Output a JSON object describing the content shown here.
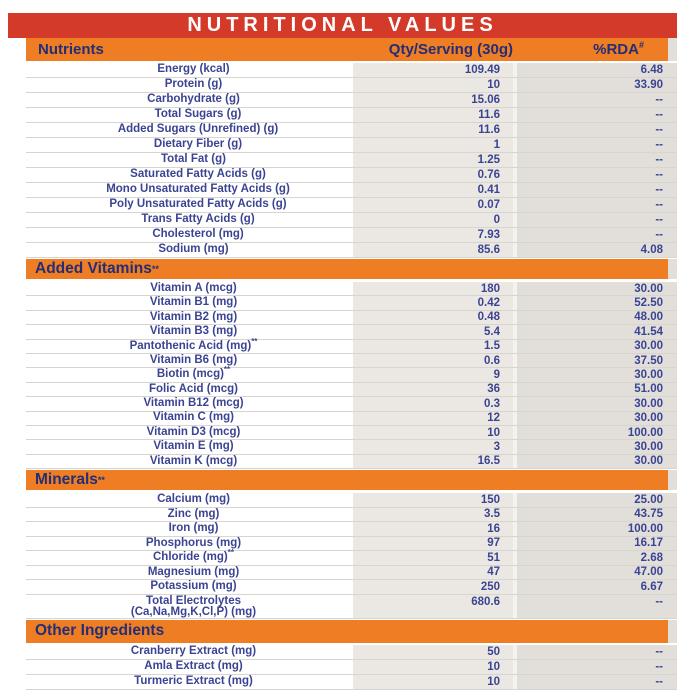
{
  "title": "NUTRITIONAL VALUES",
  "header": {
    "nutrient": "Nutrients",
    "qty": "Qty/Serving (30g)",
    "rda": "%RDA",
    "rda_sup": "#"
  },
  "colors": {
    "title_bar": "#d43a2a",
    "section_bar": "#ee7d23",
    "heading_text": "#232e77",
    "row_text": "#3a4492",
    "qty_col_bg": "#ebe8e3",
    "rda_col_bg": "#e2dfda"
  },
  "sections": [
    {
      "id": "nutrients",
      "title": null,
      "title_sup": null,
      "rows": [
        {
          "label": "Energy (kcal)",
          "qty": "109.49",
          "rda": "6.48"
        },
        {
          "label": "Protein (g)",
          "qty": "10",
          "rda": "33.90"
        },
        {
          "label": "Carbohydrate (g)",
          "qty": "15.06",
          "rda": "--"
        },
        {
          "label": "Total Sugars (g)",
          "indent": true,
          "qty": "11.6",
          "rda": "--"
        },
        {
          "label": "Added Sugars (Unrefined) (g)",
          "indent": true,
          "qty": "11.6",
          "rda": "--"
        },
        {
          "label": "Dietary Fiber (g)",
          "indent": true,
          "qty": "1",
          "rda": "--"
        },
        {
          "label": "Total Fat (g)",
          "qty": "1.25",
          "rda": "--"
        },
        {
          "label": "Saturated Fatty Acids (g)",
          "indent": true,
          "qty": "0.76",
          "rda": "--"
        },
        {
          "label": "Mono Unsaturated Fatty Acids (g)",
          "indent": true,
          "qty": "0.41",
          "rda": "--"
        },
        {
          "label": "Poly Unsaturated Fatty Acids (g)",
          "indent": true,
          "qty": "0.07",
          "rda": "--"
        },
        {
          "label": "Trans Fatty Acids (g)",
          "indent": true,
          "qty": "0",
          "rda": "--"
        },
        {
          "label": "Cholesterol (mg)",
          "indent": true,
          "qty": "7.93",
          "rda": "--"
        },
        {
          "label": "Sodium (mg)",
          "qty": "85.6",
          "rda": "4.08"
        }
      ]
    },
    {
      "id": "vitamins",
      "title": "Added Vitamins",
      "title_sup": "**",
      "rows": [
        {
          "label": "Vitamin A (mcg)",
          "qty": "180",
          "rda": "30.00"
        },
        {
          "label": "Vitamin B1 (mg)",
          "qty": "0.42",
          "rda": "52.50"
        },
        {
          "label": "Vitamin B2 (mg)",
          "qty": "0.48",
          "rda": "48.00"
        },
        {
          "label": "Vitamin B3 (mg)",
          "qty": "5.4",
          "rda": "41.54"
        },
        {
          "label": "Pantothenic Acid (mg)",
          "sup": "**",
          "qty": "1.5",
          "rda": "30.00"
        },
        {
          "label": "Vitamin B6 (mg)",
          "qty": "0.6",
          "rda": "37.50"
        },
        {
          "label": "Biotin (mcg)",
          "sup": "**",
          "qty": "9",
          "rda": "30.00"
        },
        {
          "label": "Folic Acid (mcg)",
          "qty": "36",
          "rda": "51.00"
        },
        {
          "label": "Vitamin B12 (mcg)",
          "qty": "0.3",
          "rda": "30.00"
        },
        {
          "label": "Vitamin C (mg)",
          "qty": "12",
          "rda": "30.00"
        },
        {
          "label": "Vitamin D3 (mcg)",
          "qty": "10",
          "rda": "100.00"
        },
        {
          "label": "Vitamin E (mg)",
          "qty": "3",
          "rda": "30.00"
        },
        {
          "label": "Vitamin K (mcg)",
          "qty": "16.5",
          "rda": "30.00"
        }
      ]
    },
    {
      "id": "minerals",
      "title": "Minerals",
      "title_sup": "**",
      "rows": [
        {
          "label": "Calcium (mg)",
          "qty": "150",
          "rda": "25.00"
        },
        {
          "label": "Zinc (mg)",
          "qty": "3.5",
          "rda": "43.75"
        },
        {
          "label": "Iron (mg)",
          "qty": "16",
          "rda": "100.00"
        },
        {
          "label": "Phosphorus (mg)",
          "qty": "97",
          "rda": "16.17"
        },
        {
          "label": "Chloride (mg)",
          "sup": "**",
          "qty": "51",
          "rda": "2.68"
        },
        {
          "label": "Magnesium (mg)",
          "qty": "47",
          "rda": "47.00"
        },
        {
          "label": "Potassium (mg)",
          "qty": "250",
          "rda": "6.67"
        },
        {
          "label": "Total Electrolytes",
          "label2": "(Ca,Na,Mg,K,Cl,P) (mg)",
          "qty": "680.6",
          "rda": "--"
        }
      ]
    },
    {
      "id": "other",
      "title": "Other Ingredients",
      "title_sup": null,
      "rows": [
        {
          "label": "Cranberry Extract (mg)",
          "qty": "50",
          "rda": "--"
        },
        {
          "label": "Amla Extract (mg)",
          "qty": "10",
          "rda": "--"
        },
        {
          "label": "Turmeric Extract (mg)",
          "qty": "10",
          "rda": "--"
        }
      ]
    }
  ]
}
